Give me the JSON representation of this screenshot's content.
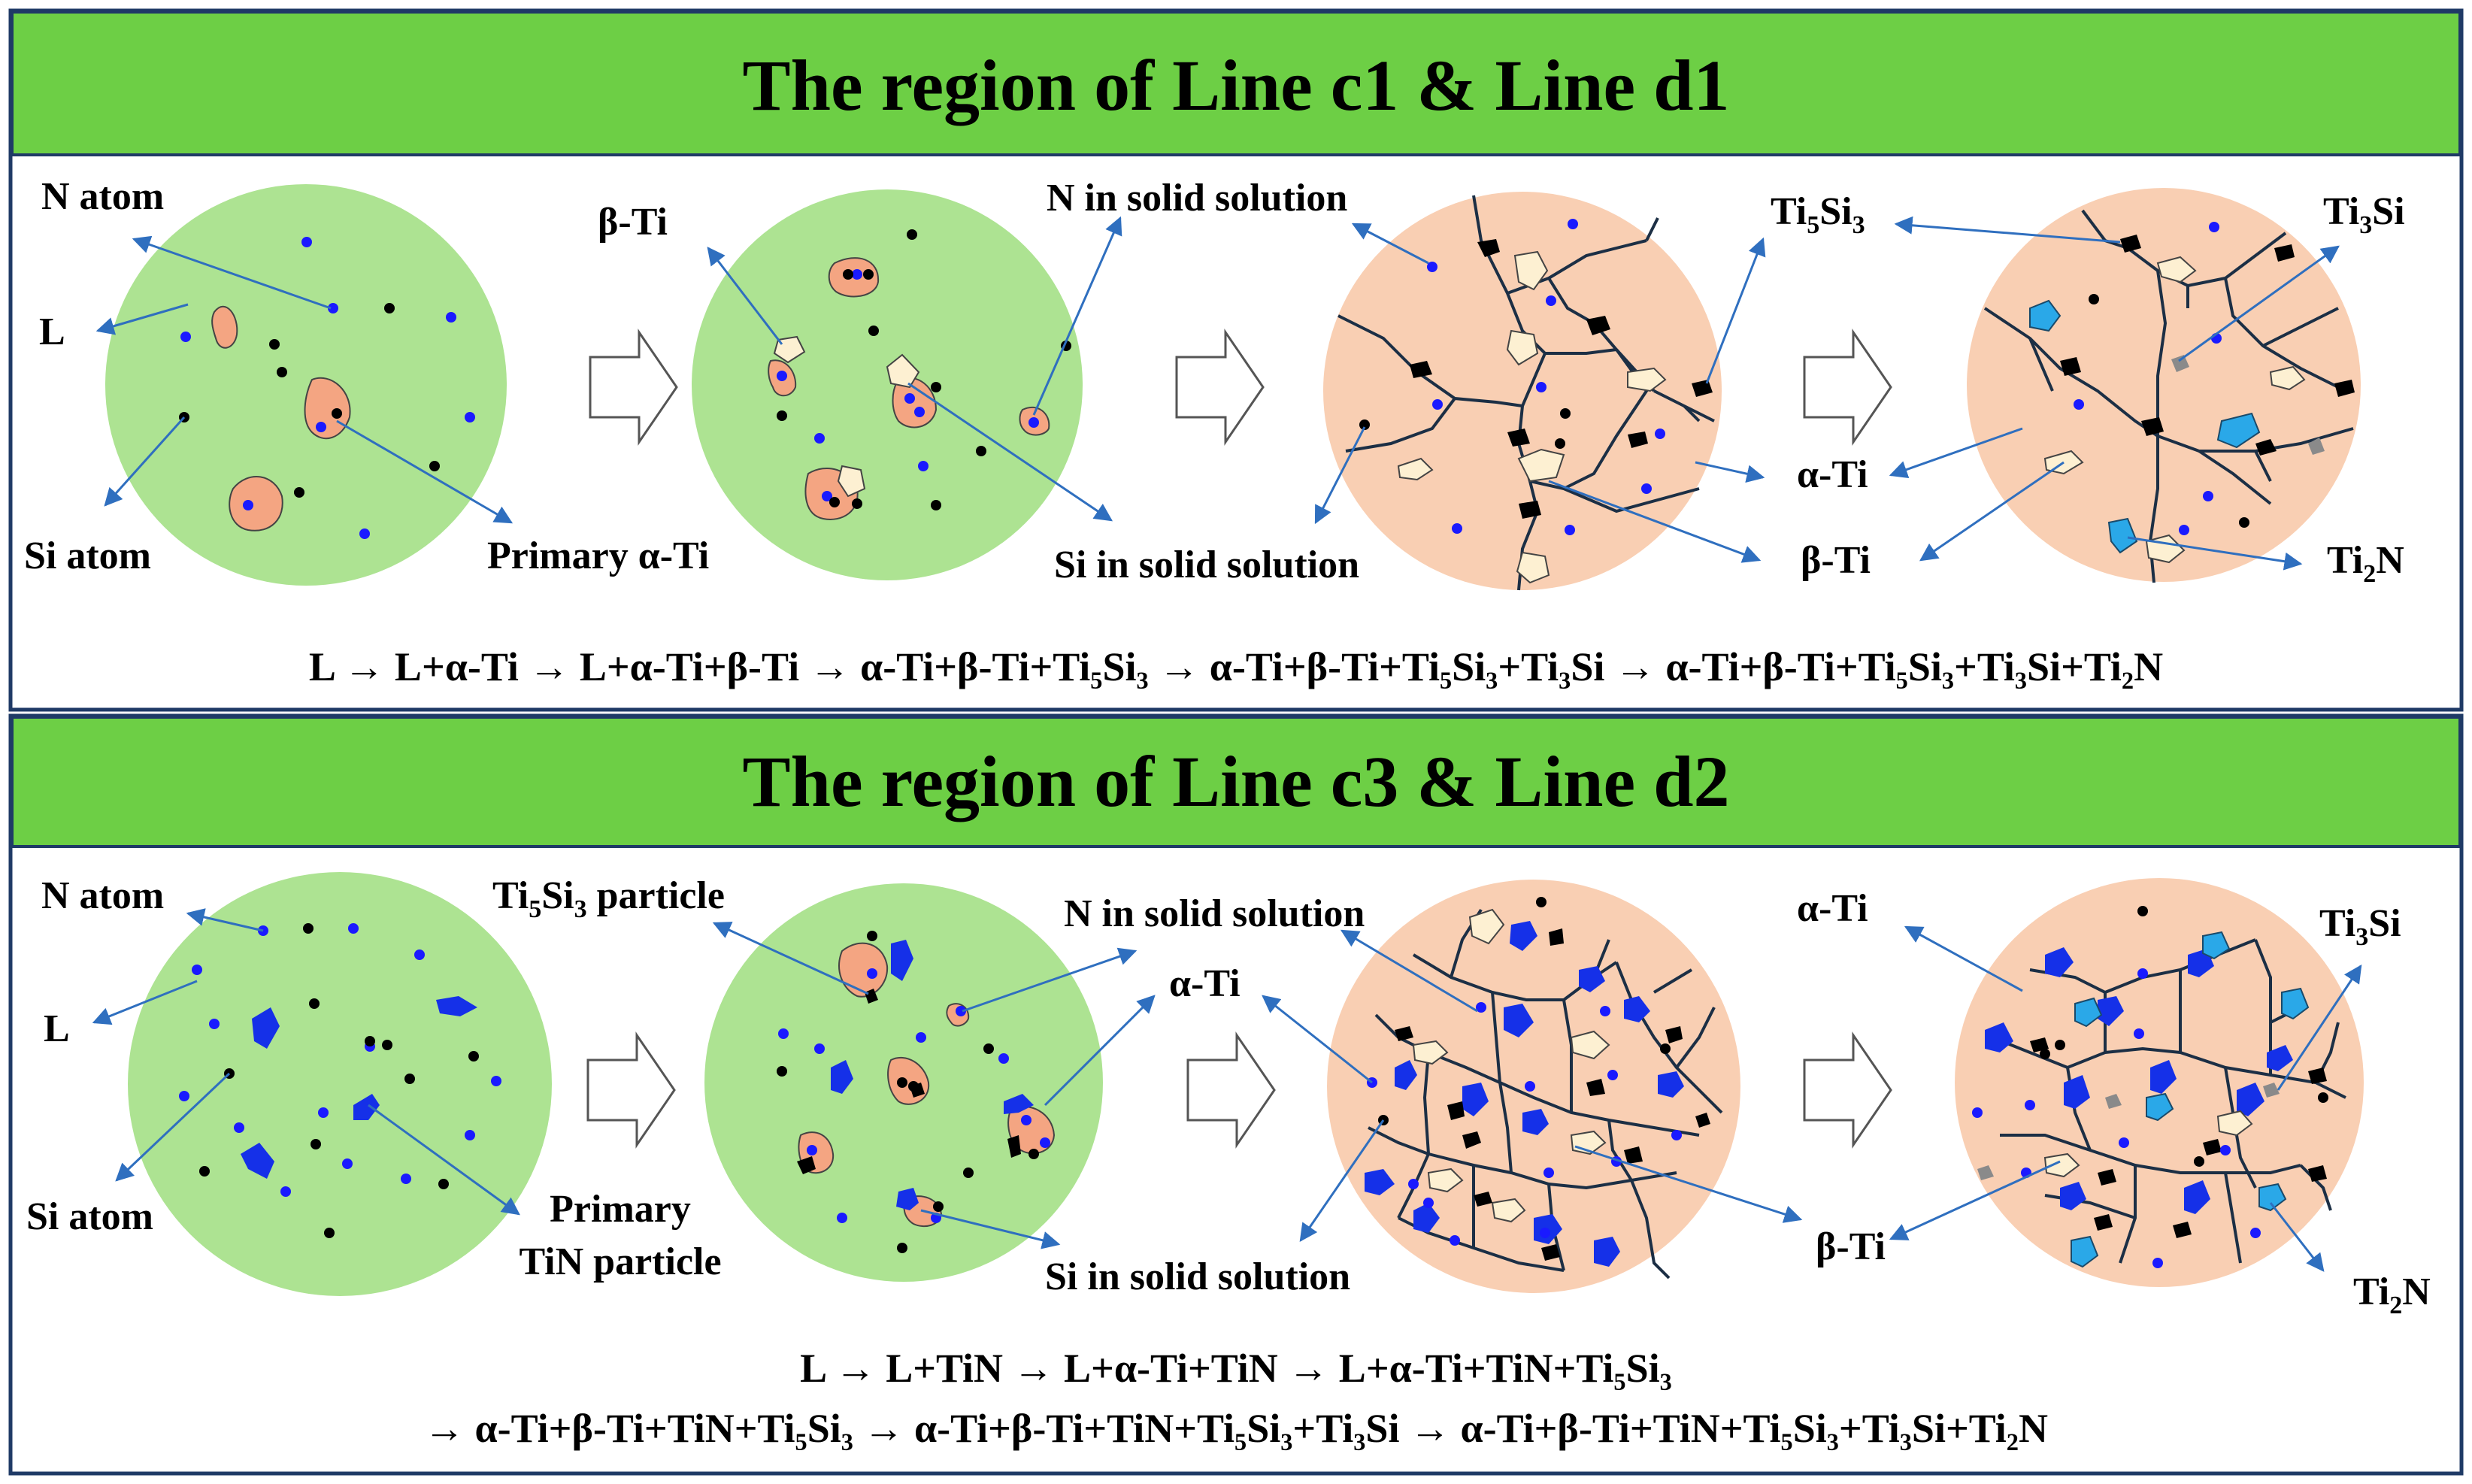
{
  "panels": [
    {
      "title": "The region of Line c1 & Line d1",
      "labels": {
        "n_atom": "N atom",
        "l": "L",
        "si_atom": "Si atom",
        "primary_alpha_ti": "Primary α-Ti",
        "beta_ti_1": "β-Ti",
        "n_in_solid": "N in solid solution",
        "si_in_solid": "Si in solid solution",
        "ti5si3": {
          "base": "Ti",
          "s1": "5",
          "mid": "Si",
          "s2": "3"
        },
        "ti3si": {
          "base": "Ti",
          "s1": "3",
          "mid": "Si"
        },
        "alpha_ti": "α-Ti",
        "beta_ti_2": "β-Ti",
        "ti2n": {
          "base": "Ti",
          "s1": "2",
          "mid": "N"
        }
      },
      "equation": "L → L+α-Ti → L+α-Ti+β-Ti → α-Ti+β-Ti+Ti₅Si₃ → α-Ti+β-Ti+Ti₅Si₃+Ti₃Si → α-Ti+β-Ti+Ti₅Si₃+Ti₃Si+Ti₂N"
    },
    {
      "title": "The region of Line c3 & Line d2",
      "labels": {
        "n_atom": "N atom",
        "l": "L",
        "si_atom": "Si atom",
        "primary_tin_1": "Primary",
        "primary_tin_2": "TiN particle",
        "ti5si3_particle": {
          "base": "Ti",
          "s1": "5",
          "mid": "Si",
          "s2": "3",
          "tail": " particle"
        },
        "n_in_solid": "N in solid solution",
        "si_in_solid": "Si in solid solution",
        "alpha_ti_1": "α-Ti",
        "alpha_ti_2": "α-Ti",
        "beta_ti": "β-Ti",
        "ti3si": {
          "base": "Ti",
          "s1": "3",
          "mid": "Si"
        },
        "ti2n": {
          "base": "Ti",
          "s1": "2",
          "mid": "N"
        }
      },
      "equation_line1": "L → L+TiN → L+α-Ti+TiN → L+α-Ti+TiN+Ti₅Si₃",
      "equation_line2": "→ α-Ti+β-Ti+TiN+Ti₅Si₃ → α-Ti+β-Ti+TiN+Ti₅Si₃+Ti₃Si → α-Ti+β-Ti+TiN+Ti₅Si₃+Ti₃Si+Ti₂N"
    }
  ],
  "colors": {
    "header_green": "#6dcf45",
    "liquid_green": "#ade392",
    "solid_peach": "#f9cfb3",
    "alpha_particle": "#f4a582",
    "beta_particle": "#fdf0d2",
    "tin_blue": "#1530e8",
    "ti2n_cyan": "#2aa8e8",
    "ti3si_gray": "#8a8a8a",
    "atom_n": "#1a1aff",
    "atom_si": "#000000",
    "arrow": "#2f6fbf",
    "border": "#1f3a66"
  }
}
